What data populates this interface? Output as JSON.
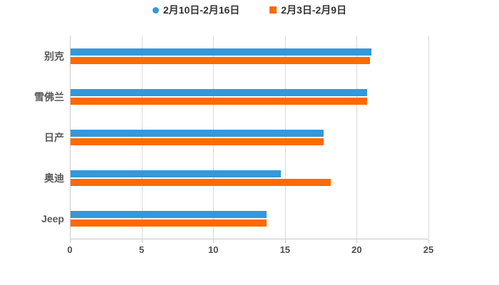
{
  "chart": {
    "background": "#ffffff",
    "colors": {
      "grid": "#d9d9d9",
      "axis": "#c9c9c9",
      "tick_label": "#4d4d4d",
      "category_label": "#595959",
      "legend_text": "#333333"
    }
  },
  "chart_data": {
    "type": "bar",
    "orientation": "horizontal",
    "title": "",
    "xlabel": "",
    "ylabel": "",
    "categories": [
      "别克",
      "雪佛兰",
      "日产",
      "奥迪",
      "Jeep"
    ],
    "series": [
      {
        "name": "2月10日-2月16日",
        "color": "#3498db",
        "marker": "circle",
        "values": [
          21.0,
          20.7,
          17.7,
          14.7,
          13.7
        ]
      },
      {
        "name": "2月3日-2月9日",
        "color": "#ff6a00",
        "marker": "square",
        "values": [
          20.9,
          20.7,
          17.7,
          18.2,
          13.7
        ]
      }
    ],
    "xlim": [
      0,
      25
    ],
    "x_ticks": [
      0,
      5,
      10,
      15,
      20,
      25
    ],
    "grid": true,
    "legend_position": "top"
  }
}
